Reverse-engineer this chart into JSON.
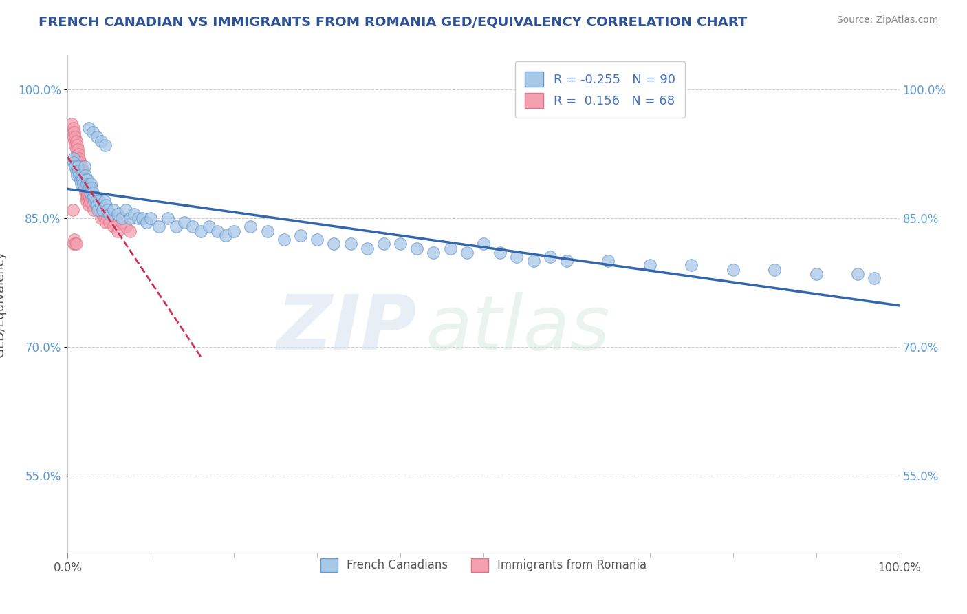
{
  "title": "FRENCH CANADIAN VS IMMIGRANTS FROM ROMANIA GED/EQUIVALENCY CORRELATION CHART",
  "source": "Source: ZipAtlas.com",
  "ylabel": "GED/Equivalency",
  "blue_R": "-0.255",
  "blue_N": "90",
  "pink_R": "0.156",
  "pink_N": "68",
  "blue_color": "#a8c8e8",
  "pink_color": "#f4a0b0",
  "blue_edge_color": "#6699cc",
  "pink_edge_color": "#dd7788",
  "blue_line_color": "#3366aa",
  "pink_line_color": "#cc3355",
  "legend_label_blue": "French Canadians",
  "legend_label_pink": "Immigrants from Romania",
  "blue_scatter_x": [
    0.007,
    0.007,
    0.009,
    0.01,
    0.011,
    0.012,
    0.013,
    0.014,
    0.015,
    0.016,
    0.017,
    0.018,
    0.019,
    0.02,
    0.021,
    0.022,
    0.023,
    0.024,
    0.025,
    0.026,
    0.027,
    0.028,
    0.029,
    0.03,
    0.031,
    0.032,
    0.033,
    0.034,
    0.035,
    0.036,
    0.038,
    0.04,
    0.042,
    0.044,
    0.046,
    0.048,
    0.05,
    0.055,
    0.06,
    0.065,
    0.07,
    0.075,
    0.08,
    0.085,
    0.09,
    0.095,
    0.1,
    0.11,
    0.12,
    0.13,
    0.14,
    0.15,
    0.16,
    0.17,
    0.18,
    0.19,
    0.2,
    0.22,
    0.24,
    0.26,
    0.28,
    0.3,
    0.32,
    0.34,
    0.36,
    0.38,
    0.4,
    0.42,
    0.44,
    0.46,
    0.48,
    0.5,
    0.52,
    0.54,
    0.56,
    0.58,
    0.6,
    0.65,
    0.7,
    0.75,
    0.8,
    0.85,
    0.9,
    0.95,
    0.97,
    0.025,
    0.03,
    0.035,
    0.04,
    0.045
  ],
  "blue_scatter_y": [
    0.92,
    0.915,
    0.91,
    0.905,
    0.9,
    0.91,
    0.905,
    0.9,
    0.895,
    0.89,
    0.9,
    0.895,
    0.89,
    0.91,
    0.9,
    0.895,
    0.89,
    0.895,
    0.89,
    0.885,
    0.88,
    0.89,
    0.885,
    0.88,
    0.875,
    0.87,
    0.875,
    0.87,
    0.865,
    0.86,
    0.87,
    0.865,
    0.86,
    0.87,
    0.865,
    0.86,
    0.855,
    0.86,
    0.855,
    0.85,
    0.86,
    0.85,
    0.855,
    0.85,
    0.85,
    0.845,
    0.85,
    0.84,
    0.85,
    0.84,
    0.845,
    0.84,
    0.835,
    0.84,
    0.835,
    0.83,
    0.835,
    0.84,
    0.835,
    0.825,
    0.83,
    0.825,
    0.82,
    0.82,
    0.815,
    0.82,
    0.82,
    0.815,
    0.81,
    0.815,
    0.81,
    0.82,
    0.81,
    0.805,
    0.8,
    0.805,
    0.8,
    0.8,
    0.795,
    0.795,
    0.79,
    0.79,
    0.785,
    0.785,
    0.78,
    0.955,
    0.95,
    0.945,
    0.94,
    0.935
  ],
  "pink_scatter_x": [
    0.005,
    0.006,
    0.007,
    0.007,
    0.008,
    0.008,
    0.009,
    0.009,
    0.01,
    0.01,
    0.011,
    0.011,
    0.012,
    0.012,
    0.013,
    0.013,
    0.014,
    0.014,
    0.015,
    0.015,
    0.016,
    0.016,
    0.017,
    0.017,
    0.018,
    0.018,
    0.019,
    0.019,
    0.02,
    0.02,
    0.021,
    0.021,
    0.022,
    0.022,
    0.023,
    0.023,
    0.024,
    0.024,
    0.025,
    0.025,
    0.026,
    0.027,
    0.028,
    0.029,
    0.03,
    0.031,
    0.032,
    0.033,
    0.034,
    0.035,
    0.036,
    0.038,
    0.04,
    0.042,
    0.044,
    0.046,
    0.048,
    0.05,
    0.055,
    0.06,
    0.065,
    0.07,
    0.075,
    0.006,
    0.007,
    0.008,
    0.009,
    0.01
  ],
  "pink_scatter_y": [
    0.96,
    0.95,
    0.945,
    0.955,
    0.94,
    0.95,
    0.935,
    0.945,
    0.93,
    0.94,
    0.925,
    0.935,
    0.92,
    0.93,
    0.915,
    0.925,
    0.91,
    0.92,
    0.905,
    0.915,
    0.9,
    0.91,
    0.9,
    0.91,
    0.895,
    0.905,
    0.89,
    0.9,
    0.885,
    0.895,
    0.88,
    0.89,
    0.875,
    0.885,
    0.87,
    0.88,
    0.88,
    0.875,
    0.87,
    0.865,
    0.875,
    0.87,
    0.88,
    0.875,
    0.865,
    0.86,
    0.875,
    0.87,
    0.865,
    0.87,
    0.865,
    0.86,
    0.85,
    0.855,
    0.85,
    0.845,
    0.85,
    0.845,
    0.84,
    0.835,
    0.845,
    0.84,
    0.835,
    0.86,
    0.82,
    0.825,
    0.82,
    0.82
  ],
  "xlim": [
    0.0,
    1.0
  ],
  "ylim": [
    0.46,
    1.04
  ],
  "yticks": [
    0.55,
    0.7,
    0.85,
    1.0
  ],
  "ytick_labels": [
    "55.0%",
    "70.0%",
    "85.0%",
    "100.0%"
  ]
}
